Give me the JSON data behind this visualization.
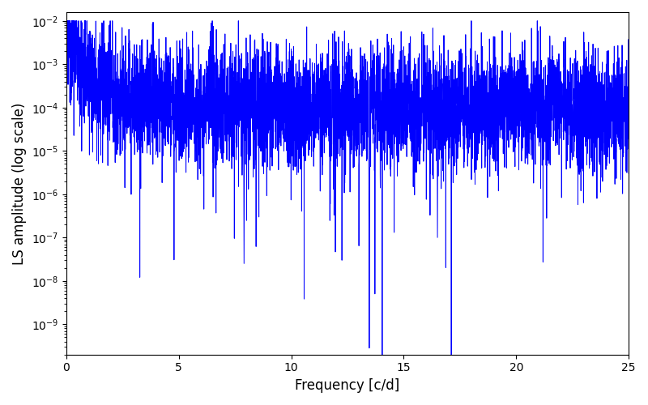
{
  "title": "",
  "xlabel": "Frequency [c/d]",
  "ylabel": "LS amplitude (log scale)",
  "line_color": "#0000ff",
  "line_width": 0.7,
  "xlim": [
    0,
    25
  ],
  "ylim_log_min": -9.7,
  "ylim_log_max": -1.8,
  "yscale": "log",
  "figsize": [
    8.0,
    5.0
  ],
  "dpi": 100,
  "seed": 12345,
  "n_points": 5000,
  "freq_max": 25.0,
  "deep_notch_freq": 13.47,
  "deep_notch_value": -9.55,
  "second_dip_freq": 7.9,
  "second_dip_value": -7.6
}
